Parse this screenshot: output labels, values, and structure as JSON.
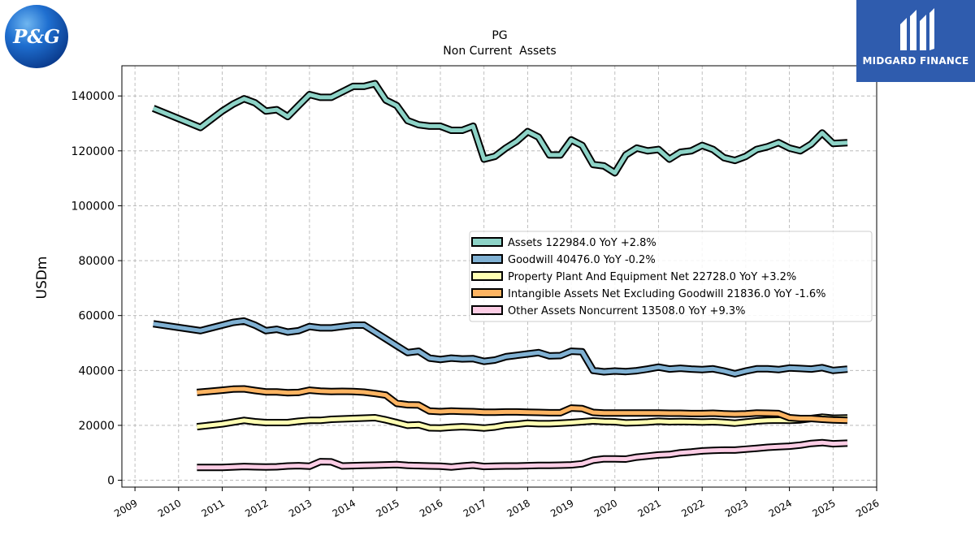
{
  "logos": {
    "left_text": "P&G",
    "right_text": "MIDGARD FINANCE"
  },
  "chart_data": {
    "type": "line",
    "title": "PG",
    "subtitle": "Non Current  Assets",
    "xlabel": "",
    "ylabel": "USDm",
    "xlim": [
      2008.7,
      2026.0
    ],
    "ylim": [
      -2500,
      151000
    ],
    "x_ticks": [
      2009,
      2010,
      2011,
      2012,
      2013,
      2014,
      2015,
      2016,
      2017,
      2018,
      2019,
      2020,
      2021,
      2022,
      2023,
      2024,
      2025,
      2026
    ],
    "y_ticks": [
      0,
      20000,
      40000,
      60000,
      80000,
      100000,
      120000,
      140000
    ],
    "grid": true,
    "legend_position": "center-right",
    "series": [
      {
        "name": "Assets  122984.0 YoY +2.8%",
        "color": "#8dd3c7",
        "points": [
          [
            2009.42,
            135500
          ],
          [
            2010.5,
            128500
          ],
          [
            2011.0,
            134500
          ],
          [
            2011.25,
            137000
          ],
          [
            2011.5,
            139000
          ],
          [
            2011.75,
            137500
          ],
          [
            2012.0,
            134500
          ],
          [
            2012.25,
            135000
          ],
          [
            2012.5,
            132500
          ],
          [
            2012.75,
            136500
          ],
          [
            2013.0,
            140500
          ],
          [
            2013.25,
            139500
          ],
          [
            2013.5,
            139500
          ],
          [
            2013.75,
            141500
          ],
          [
            2014.0,
            143500
          ],
          [
            2014.25,
            143500
          ],
          [
            2014.5,
            144500
          ],
          [
            2014.75,
            138500
          ],
          [
            2015.0,
            136500
          ],
          [
            2015.25,
            131000
          ],
          [
            2015.5,
            129500
          ],
          [
            2015.75,
            129000
          ],
          [
            2016.0,
            129000
          ],
          [
            2016.25,
            127500
          ],
          [
            2016.5,
            127500
          ],
          [
            2016.75,
            129000
          ],
          [
            2017.0,
            117000
          ],
          [
            2017.25,
            118000
          ],
          [
            2017.5,
            121000
          ],
          [
            2017.75,
            123500
          ],
          [
            2018.0,
            127000
          ],
          [
            2018.25,
            125000
          ],
          [
            2018.5,
            118500
          ],
          [
            2018.75,
            118500
          ],
          [
            2019.0,
            124000
          ],
          [
            2019.25,
            122000
          ],
          [
            2019.5,
            115000
          ],
          [
            2019.75,
            114500
          ],
          [
            2020.0,
            112000
          ],
          [
            2020.25,
            118500
          ],
          [
            2020.5,
            121000
          ],
          [
            2020.75,
            120000
          ],
          [
            2021.0,
            120500
          ],
          [
            2021.25,
            117000
          ],
          [
            2021.5,
            119500
          ],
          [
            2021.75,
            120000
          ],
          [
            2022.0,
            122000
          ],
          [
            2022.25,
            120500
          ],
          [
            2022.5,
            117500
          ],
          [
            2022.75,
            116500
          ],
          [
            2023.0,
            118000
          ],
          [
            2023.25,
            120500
          ],
          [
            2023.5,
            121500
          ],
          [
            2023.75,
            123000
          ],
          [
            2024.0,
            121000
          ],
          [
            2024.25,
            120000
          ],
          [
            2024.5,
            122500
          ],
          [
            2024.75,
            126500
          ],
          [
            2025.0,
            122700
          ],
          [
            2025.33,
            122984
          ]
        ]
      },
      {
        "name": "Goodwill  40476.0 YoY -0.2%",
        "color": "#80b1d3",
        "points": [
          [
            2009.42,
            57000
          ],
          [
            2010.5,
            54500
          ],
          [
            2011.0,
            56500
          ],
          [
            2011.25,
            57500
          ],
          [
            2011.5,
            58000
          ],
          [
            2011.75,
            56500
          ],
          [
            2012.0,
            54500
          ],
          [
            2012.25,
            55000
          ],
          [
            2012.5,
            54000
          ],
          [
            2012.75,
            54500
          ],
          [
            2013.0,
            56000
          ],
          [
            2013.25,
            55500
          ],
          [
            2013.5,
            55500
          ],
          [
            2013.75,
            56000
          ],
          [
            2014.0,
            56500
          ],
          [
            2014.25,
            56500
          ],
          [
            2014.5,
            54000
          ],
          [
            2014.75,
            51500
          ],
          [
            2015.0,
            49000
          ],
          [
            2015.25,
            46500
          ],
          [
            2015.5,
            47000
          ],
          [
            2015.75,
            44500
          ],
          [
            2016.0,
            44000
          ],
          [
            2016.25,
            44500
          ],
          [
            2016.5,
            44200
          ],
          [
            2016.75,
            44300
          ],
          [
            2017.0,
            43300
          ],
          [
            2017.25,
            43800
          ],
          [
            2017.5,
            45000
          ],
          [
            2017.75,
            45500
          ],
          [
            2018.0,
            46000
          ],
          [
            2018.25,
            46500
          ],
          [
            2018.5,
            45300
          ],
          [
            2018.75,
            45400
          ],
          [
            2019.0,
            47000
          ],
          [
            2019.25,
            46800
          ],
          [
            2019.5,
            40000
          ],
          [
            2019.75,
            39500
          ],
          [
            2020.0,
            39800
          ],
          [
            2020.25,
            39600
          ],
          [
            2020.5,
            39900
          ],
          [
            2020.75,
            40500
          ],
          [
            2021.0,
            41200
          ],
          [
            2021.25,
            40500
          ],
          [
            2021.5,
            40800
          ],
          [
            2021.75,
            40500
          ],
          [
            2022.0,
            40300
          ],
          [
            2022.25,
            40600
          ],
          [
            2022.5,
            39800
          ],
          [
            2022.75,
            38800
          ],
          [
            2023.0,
            39800
          ],
          [
            2023.25,
            40600
          ],
          [
            2023.5,
            40600
          ],
          [
            2023.75,
            40300
          ],
          [
            2024.0,
            40900
          ],
          [
            2024.25,
            40700
          ],
          [
            2024.5,
            40500
          ],
          [
            2024.75,
            41000
          ],
          [
            2025.0,
            40000
          ],
          [
            2025.33,
            40476
          ]
        ]
      },
      {
        "name": "Property Plant And Equipment Net  22728.0 YoY +3.2%",
        "color": "#ffffb3",
        "points": [
          [
            2010.42,
            19500
          ],
          [
            2011.0,
            20500
          ],
          [
            2011.5,
            21800
          ],
          [
            2011.75,
            21300
          ],
          [
            2012.0,
            21000
          ],
          [
            2012.5,
            21000
          ],
          [
            2012.75,
            21500
          ],
          [
            2013.0,
            21800
          ],
          [
            2013.25,
            21800
          ],
          [
            2013.5,
            22200
          ],
          [
            2014.0,
            22500
          ],
          [
            2014.5,
            22800
          ],
          [
            2014.75,
            22000
          ],
          [
            2015.0,
            21000
          ],
          [
            2015.25,
            20000
          ],
          [
            2015.5,
            20200
          ],
          [
            2015.75,
            19100
          ],
          [
            2016.0,
            19000
          ],
          [
            2016.25,
            19300
          ],
          [
            2016.5,
            19500
          ],
          [
            2016.75,
            19300
          ],
          [
            2017.0,
            19000
          ],
          [
            2017.25,
            19400
          ],
          [
            2017.5,
            20100
          ],
          [
            2017.75,
            20400
          ],
          [
            2018.0,
            20800
          ],
          [
            2018.25,
            20600
          ],
          [
            2018.5,
            20600
          ],
          [
            2018.75,
            20800
          ],
          [
            2019.0,
            21000
          ],
          [
            2019.25,
            21300
          ],
          [
            2019.5,
            21600
          ],
          [
            2019.75,
            21400
          ],
          [
            2020.0,
            21300
          ],
          [
            2020.25,
            20900
          ],
          [
            2020.5,
            21000
          ],
          [
            2020.75,
            21200
          ],
          [
            2021.0,
            21500
          ],
          [
            2021.25,
            21300
          ],
          [
            2021.5,
            21400
          ],
          [
            2021.75,
            21300
          ],
          [
            2022.0,
            21200
          ],
          [
            2022.25,
            21300
          ],
          [
            2022.5,
            21100
          ],
          [
            2022.75,
            20800
          ],
          [
            2023.0,
            21200
          ],
          [
            2023.25,
            21600
          ],
          [
            2023.5,
            21800
          ],
          [
            2023.75,
            21900
          ],
          [
            2024.0,
            21800
          ],
          [
            2024.25,
            22000
          ],
          [
            2024.5,
            22500
          ],
          [
            2024.75,
            23000
          ],
          [
            2025.0,
            22600
          ],
          [
            2025.33,
            22728
          ]
        ]
      },
      {
        "name": "Intangible Assets Net Excluding Goodwill  21836.0 YoY -1.6%",
        "color": "#fdb462",
        "points": [
          [
            2010.42,
            32000
          ],
          [
            2011.0,
            32800
          ],
          [
            2011.25,
            33200
          ],
          [
            2011.5,
            33300
          ],
          [
            2011.75,
            32700
          ],
          [
            2012.0,
            32200
          ],
          [
            2012.25,
            32200
          ],
          [
            2012.5,
            31900
          ],
          [
            2012.75,
            32000
          ],
          [
            2013.0,
            32800
          ],
          [
            2013.25,
            32500
          ],
          [
            2013.5,
            32300
          ],
          [
            2013.75,
            32400
          ],
          [
            2014.0,
            32300
          ],
          [
            2014.25,
            32100
          ],
          [
            2014.5,
            31600
          ],
          [
            2014.75,
            31000
          ],
          [
            2015.0,
            28000
          ],
          [
            2015.25,
            27500
          ],
          [
            2015.5,
            27400
          ],
          [
            2015.75,
            25200
          ],
          [
            2016.0,
            25000
          ],
          [
            2016.25,
            25200
          ],
          [
            2016.5,
            25100
          ],
          [
            2016.75,
            25000
          ],
          [
            2017.0,
            24800
          ],
          [
            2017.25,
            24800
          ],
          [
            2017.5,
            24900
          ],
          [
            2017.75,
            24900
          ],
          [
            2018.0,
            24800
          ],
          [
            2018.25,
            24700
          ],
          [
            2018.5,
            24600
          ],
          [
            2018.75,
            24600
          ],
          [
            2019.0,
            26300
          ],
          [
            2019.25,
            26100
          ],
          [
            2019.5,
            24700
          ],
          [
            2019.75,
            24500
          ],
          [
            2020.0,
            24500
          ],
          [
            2020.25,
            24500
          ],
          [
            2020.5,
            24500
          ],
          [
            2020.75,
            24500
          ],
          [
            2021.0,
            24500
          ],
          [
            2021.25,
            24400
          ],
          [
            2021.5,
            24400
          ],
          [
            2021.75,
            24300
          ],
          [
            2022.0,
            24300
          ],
          [
            2022.25,
            24400
          ],
          [
            2022.5,
            24200
          ],
          [
            2022.75,
            24100
          ],
          [
            2023.0,
            24200
          ],
          [
            2023.25,
            24500
          ],
          [
            2023.5,
            24400
          ],
          [
            2023.75,
            24300
          ],
          [
            2024.0,
            22800
          ],
          [
            2024.25,
            22500
          ],
          [
            2024.5,
            22500
          ],
          [
            2024.75,
            22200
          ],
          [
            2025.0,
            22000
          ],
          [
            2025.33,
            21836
          ]
        ]
      },
      {
        "name": "Other Assets Noncurrent  13508.0 YoY +9.3%",
        "color": "#fccde5",
        "points": [
          [
            2010.42,
            4700
          ],
          [
            2011.0,
            4700
          ],
          [
            2011.5,
            5000
          ],
          [
            2011.75,
            4900
          ],
          [
            2012.0,
            4800
          ],
          [
            2012.25,
            4900
          ],
          [
            2012.5,
            5200
          ],
          [
            2012.75,
            5300
          ],
          [
            2013.0,
            5100
          ],
          [
            2013.25,
            6800
          ],
          [
            2013.5,
            6700
          ],
          [
            2013.75,
            5200
          ],
          [
            2014.0,
            5300
          ],
          [
            2014.25,
            5400
          ],
          [
            2014.5,
            5500
          ],
          [
            2014.75,
            5600
          ],
          [
            2015.0,
            5700
          ],
          [
            2015.25,
            5400
          ],
          [
            2015.5,
            5300
          ],
          [
            2015.75,
            5200
          ],
          [
            2016.0,
            5100
          ],
          [
            2016.25,
            4800
          ],
          [
            2016.5,
            5200
          ],
          [
            2016.75,
            5500
          ],
          [
            2017.0,
            5000
          ],
          [
            2017.25,
            5100
          ],
          [
            2017.5,
            5200
          ],
          [
            2017.75,
            5200
          ],
          [
            2018.0,
            5300
          ],
          [
            2018.25,
            5400
          ],
          [
            2018.5,
            5400
          ],
          [
            2018.75,
            5500
          ],
          [
            2019.0,
            5600
          ],
          [
            2019.25,
            6000
          ],
          [
            2019.5,
            7300
          ],
          [
            2019.75,
            7800
          ],
          [
            2020.0,
            7800
          ],
          [
            2020.25,
            7700
          ],
          [
            2020.5,
            8400
          ],
          [
            2020.75,
            8800
          ],
          [
            2021.0,
            9200
          ],
          [
            2021.25,
            9400
          ],
          [
            2021.5,
            10000
          ],
          [
            2021.75,
            10300
          ],
          [
            2022.0,
            10700
          ],
          [
            2022.25,
            10900
          ],
          [
            2022.5,
            11000
          ],
          [
            2022.75,
            11000
          ],
          [
            2023.0,
            11300
          ],
          [
            2023.25,
            11600
          ],
          [
            2023.5,
            12000
          ],
          [
            2023.75,
            12200
          ],
          [
            2024.0,
            12400
          ],
          [
            2024.25,
            12800
          ],
          [
            2024.5,
            13400
          ],
          [
            2024.75,
            13700
          ],
          [
            2025.0,
            13300
          ],
          [
            2025.33,
            13508
          ]
        ]
      }
    ]
  }
}
